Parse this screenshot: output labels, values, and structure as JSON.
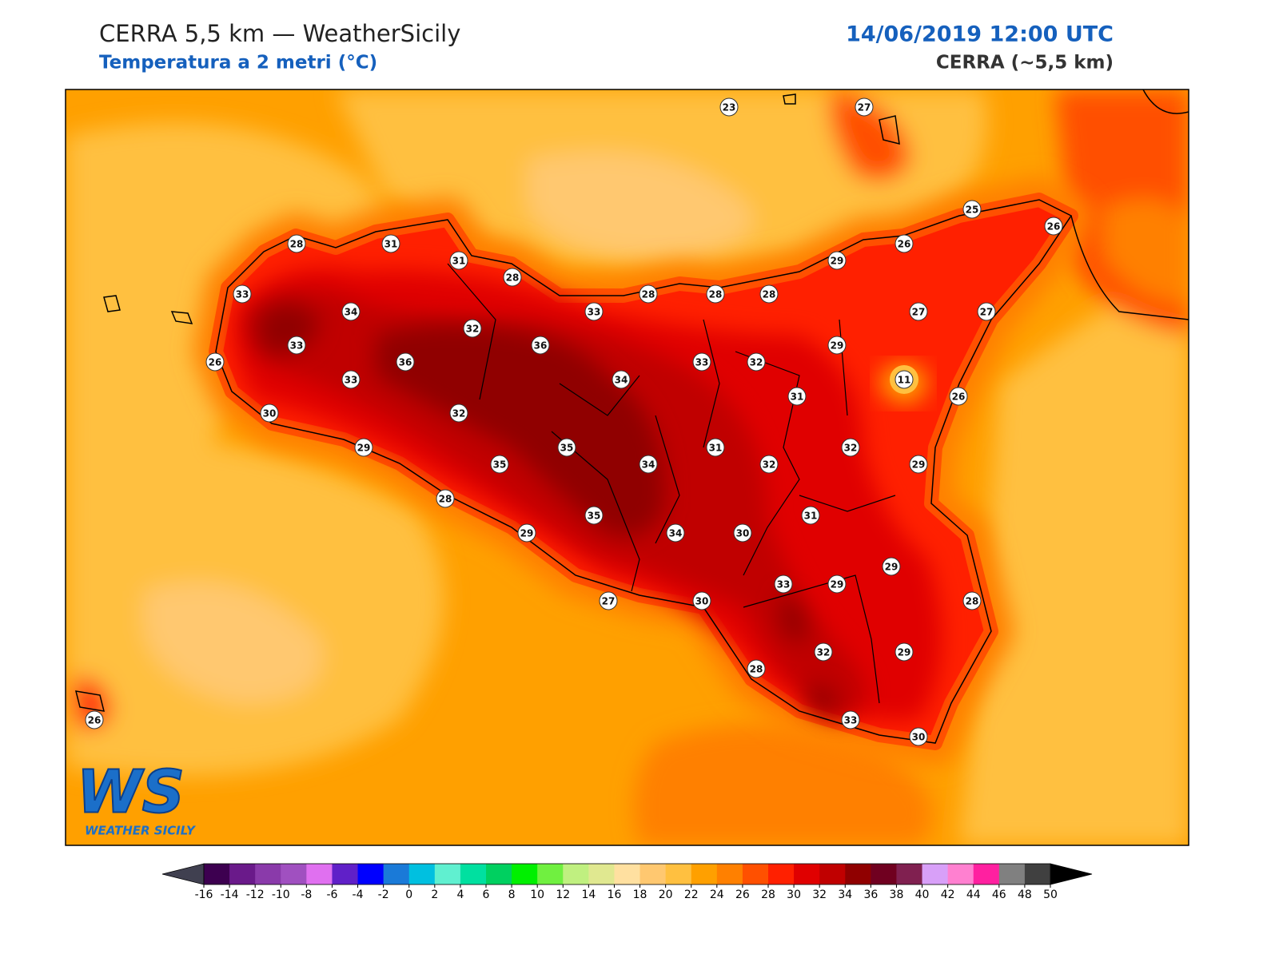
{
  "header": {
    "title": "CERRA 5,5 km — WeatherSicily",
    "subtitle": "Temperatura a 2 metri (°C)",
    "date": "14/06/2019 12:00 UTC",
    "model": "CERRA (~5,5 km)"
  },
  "stations": [
    23,
    27,
    25,
    26,
    26,
    29,
    28,
    31,
    31,
    28,
    33,
    28,
    28,
    28,
    34,
    33,
    27,
    27,
    32,
    33,
    36,
    29,
    26,
    36,
    33,
    32,
    33,
    34,
    11,
    31,
    26,
    30,
    32,
    35,
    31,
    32,
    29,
    35,
    34,
    32,
    29,
    28,
    35,
    31,
    29,
    34,
    30,
    29,
    33,
    29,
    27,
    30,
    28,
    32,
    29,
    28,
    26,
    33,
    30
  ],
  "colorbar": {
    "ticks": [
      -16,
      -14,
      -12,
      -10,
      -8,
      -6,
      -4,
      -2,
      0,
      2,
      4,
      6,
      8,
      10,
      12,
      14,
      16,
      18,
      20,
      22,
      24,
      26,
      28,
      30,
      32,
      34,
      36,
      38,
      40,
      42,
      44,
      46,
      48,
      50
    ],
    "colors": [
      "#3d0050",
      "#6a1a8a",
      "#8a3aaa",
      "#a050c0",
      "#e070f0",
      "#6020c8",
      "#0000ff",
      "#1a7ad8",
      "#00c0e0",
      "#60f0d0",
      "#00e0a0",
      "#00d060",
      "#00f000",
      "#70f040",
      "#c0f080",
      "#e0e890",
      "#ffe0a0",
      "#ffc870",
      "#ffc040",
      "#ffa000",
      "#ff8000",
      "#ff5000",
      "#ff2000",
      "#e00000",
      "#c00000",
      "#900000",
      "#700020",
      "#802050",
      "#d8a0f8",
      "#ff80d0",
      "#ff20a0",
      "#808080",
      "#404040"
    ],
    "under_color": "#404050",
    "over_color": "#000000"
  },
  "logo": {
    "mark": "WS",
    "name": "WEATHER SICILY"
  }
}
